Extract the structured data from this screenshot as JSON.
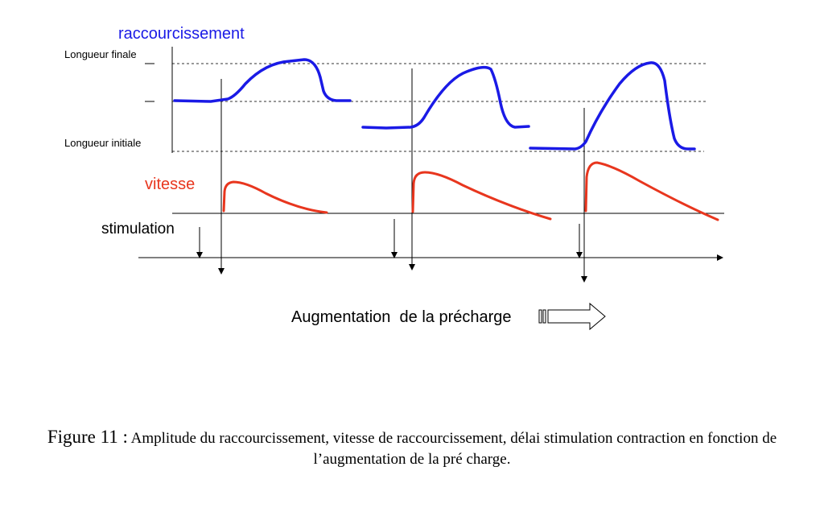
{
  "labels": {
    "shortening": "raccourcissement",
    "final_length": "Longueur finale",
    "initial_length": "Longueur initiale",
    "speed": "vitesse",
    "stimulation": "stimulation",
    "precharge": "Augmentation  de la précharge"
  },
  "caption": {
    "number": "Figure 11 :",
    "text": " Amplitude du raccourcissement, vitesse de raccourcissement, délai stimulation contraction en fonction de l’augmentation de la pré charge."
  },
  "colors": {
    "shortening": "#1a1ae6",
    "speed": "#e8361e",
    "axis": "#000000"
  }
}
